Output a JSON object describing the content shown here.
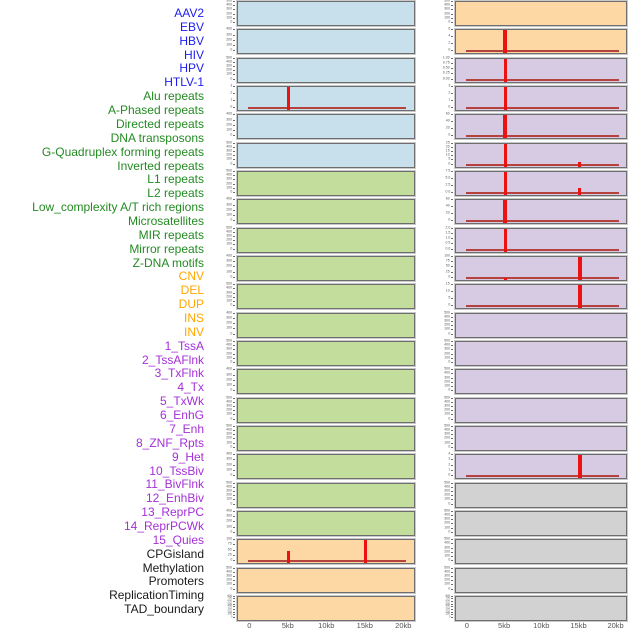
{
  "figure": {
    "title": "",
    "label_colors": {
      "virus": "#1c1cf0",
      "repeat": "#238b22",
      "sv": "#ffa600",
      "chromatin": "#a430d8",
      "other": "#1a1a1a"
    },
    "plot_bg_colors": {
      "virus": "#c8e0eb",
      "repeat": "#c3dd9d",
      "sv": "#fdd8a5",
      "chromatin": "#d6cbe3",
      "other": "#d2d2d2"
    },
    "signal_colors": {
      "spike": "#ec1212",
      "baseline": "#b5423c"
    }
  },
  "chart_data": {
    "type": "area",
    "x_unit": "kb",
    "x_range_kb": [
      0,
      20
    ],
    "x_ticks": [
      {
        "label": "0",
        "kb": 0
      },
      {
        "label": "5kb",
        "kb": 5
      },
      {
        "label": "10kb",
        "kb": 10
      },
      {
        "label": "15kb",
        "kb": 15
      },
      {
        "label": "20kb",
        "kb": 20
      }
    ],
    "layout_note": "44 tracks, column-major grid of 22 rows x 2 columns",
    "tracks": [
      {
        "name": "AAV2",
        "category": "virus",
        "column": "left",
        "yticks": [
          "0",
          "100",
          "200",
          "300",
          "400",
          "500"
        ],
        "ymax": 500,
        "peaks": [],
        "baseline": false,
        "dense": false
      },
      {
        "name": "EBV",
        "category": "virus",
        "column": "left",
        "yticks": [
          "0",
          "100",
          "200",
          "300",
          "400"
        ],
        "ymax": 400,
        "peaks": [],
        "baseline": false,
        "dense": false
      },
      {
        "name": "HBV",
        "category": "virus",
        "column": "left",
        "yticks": [
          "0",
          "100",
          "200",
          "300",
          "400",
          "500"
        ],
        "ymax": 500,
        "peaks": [],
        "baseline": false,
        "dense": false
      },
      {
        "name": "HIV",
        "category": "virus",
        "column": "left",
        "yticks": [
          "0",
          "1",
          "2",
          "3"
        ],
        "ymax": 3,
        "peaks": [
          {
            "x_kb": 5,
            "y": 3
          }
        ],
        "baseline": true,
        "dense": false
      },
      {
        "name": "HPV",
        "category": "virus",
        "column": "left",
        "yticks": [
          "0",
          "100",
          "200",
          "300",
          "400"
        ],
        "ymax": 400,
        "peaks": [],
        "baseline": false,
        "dense": false
      },
      {
        "name": "HTLV-1",
        "category": "virus",
        "column": "left",
        "yticks": [
          "0",
          "100",
          "200",
          "300",
          "400",
          "500"
        ],
        "ymax": 500,
        "peaks": [],
        "baseline": false,
        "dense": false
      },
      {
        "name": "Alu repeats",
        "category": "repeat",
        "column": "left",
        "yticks": [
          "0",
          "100",
          "200",
          "300",
          "400",
          "500"
        ],
        "ymax": 500,
        "peaks": [],
        "baseline": false,
        "dense": false
      },
      {
        "name": "A-Phased repeats",
        "category": "repeat",
        "column": "left",
        "yticks": [
          "0",
          "100",
          "200",
          "300",
          "400"
        ],
        "ymax": 400,
        "peaks": [],
        "baseline": false,
        "dense": false
      },
      {
        "name": "Directed repeats",
        "category": "repeat",
        "column": "left",
        "yticks": [
          "0",
          "100",
          "200",
          "300",
          "400",
          "500"
        ],
        "ymax": 500,
        "peaks": [],
        "baseline": false,
        "dense": false
      },
      {
        "name": "DNA transposons",
        "category": "repeat",
        "column": "left",
        "yticks": [
          "0",
          "100",
          "200",
          "300",
          "400"
        ],
        "ymax": 400,
        "peaks": [],
        "baseline": false,
        "dense": false
      },
      {
        "name": "G-Quadruplex forming repeats",
        "category": "repeat",
        "column": "left",
        "yticks": [
          "0",
          "100",
          "200",
          "300",
          "400",
          "500"
        ],
        "ymax": 500,
        "peaks": [],
        "baseline": false,
        "dense": false
      },
      {
        "name": "Inverted repeats",
        "category": "repeat",
        "column": "left",
        "yticks": [
          "0",
          "100",
          "200",
          "300",
          "400"
        ],
        "ymax": 400,
        "peaks": [],
        "baseline": false,
        "dense": false
      },
      {
        "name": "L1 repeats",
        "category": "repeat",
        "column": "left",
        "yticks": [
          "0",
          "100",
          "200",
          "300",
          "400",
          "500"
        ],
        "ymax": 500,
        "peaks": [],
        "baseline": false,
        "dense": false
      },
      {
        "name": "L2 repeats",
        "category": "repeat",
        "column": "left",
        "yticks": [
          "0",
          "100",
          "200",
          "300",
          "400"
        ],
        "ymax": 400,
        "peaks": [],
        "baseline": false,
        "dense": false
      },
      {
        "name": "Low_complexity A/T rich regions",
        "category": "repeat",
        "column": "left",
        "yticks": [
          "0",
          "100",
          "200",
          "300",
          "400",
          "500"
        ],
        "ymax": 500,
        "peaks": [],
        "baseline": false,
        "dense": false
      },
      {
        "name": "Microsatellites",
        "category": "repeat",
        "column": "left",
        "yticks": [
          "0",
          "100",
          "200",
          "300",
          "400",
          "500"
        ],
        "ymax": 500,
        "peaks": [],
        "baseline": false,
        "dense": false
      },
      {
        "name": "MIR repeats",
        "category": "repeat",
        "column": "left",
        "yticks": [
          "0",
          "100",
          "200",
          "300",
          "400"
        ],
        "ymax": 400,
        "peaks": [],
        "baseline": false,
        "dense": false
      },
      {
        "name": "Mirror repeats",
        "category": "repeat",
        "column": "left",
        "yticks": [
          "0",
          "100",
          "200",
          "300",
          "400",
          "500"
        ],
        "ymax": 500,
        "peaks": [],
        "baseline": false,
        "dense": false
      },
      {
        "name": "Z-DNA motifs",
        "category": "repeat",
        "column": "left",
        "yticks": [
          "0",
          "100",
          "200",
          "300",
          "400"
        ],
        "ymax": 400,
        "peaks": [],
        "baseline": false,
        "dense": false
      },
      {
        "name": "CNV",
        "category": "sv",
        "column": "left",
        "yticks": [
          "0",
          "25",
          "50",
          "75",
          "100"
        ],
        "ymax": 100,
        "peaks": [
          {
            "x_kb": 5,
            "y": 50
          },
          {
            "x_kb": 15,
            "y": 100
          }
        ],
        "baseline": true,
        "dense": false
      },
      {
        "name": "DEL",
        "category": "sv",
        "column": "left",
        "yticks": [
          "0",
          "100",
          "200",
          "300",
          "400",
          "500"
        ],
        "ymax": 500,
        "peaks": [],
        "baseline": false,
        "dense": false
      },
      {
        "name": "DUP",
        "category": "sv",
        "column": "left",
        "yticks": [
          "0",
          "100",
          "200",
          "300",
          "400",
          "500",
          "600",
          "700",
          "800"
        ],
        "ymax": 800,
        "peaks": [],
        "baseline": false,
        "dense": true
      },
      {
        "name": "INS",
        "category": "sv",
        "column": "right",
        "yticks": [
          "0",
          "100",
          "200",
          "300",
          "400",
          "500"
        ],
        "ymax": 500,
        "peaks": [],
        "baseline": false,
        "dense": false
      },
      {
        "name": "INV",
        "category": "sv",
        "column": "right",
        "yticks": [
          "0",
          "2",
          "4",
          "6"
        ],
        "ymax": 6,
        "peaks": [
          {
            "x_kb": 5,
            "y": 6,
            "w": 4
          }
        ],
        "baseline": true,
        "dense": false
      },
      {
        "name": "1_TssA",
        "category": "chromatin",
        "column": "right",
        "yticks": [
          "0.00",
          "0.25",
          "0.50",
          "0.75",
          "1.00"
        ],
        "ymax": 1,
        "peaks": [
          {
            "x_kb": 5,
            "y": 1
          }
        ],
        "baseline": true,
        "dense": false
      },
      {
        "name": "2_TssAFlnk",
        "category": "chromatin",
        "column": "right",
        "yticks": [
          "0",
          "1",
          "2",
          "3"
        ],
        "ymax": 3,
        "peaks": [
          {
            "x_kb": 5,
            "y": 3
          }
        ],
        "baseline": true,
        "dense": false
      },
      {
        "name": "3_TxFlnk",
        "category": "chromatin",
        "column": "right",
        "yticks": [
          "0",
          "20",
          "40",
          "60"
        ],
        "ymax": 60,
        "peaks": [
          {
            "x_kb": 5,
            "y": 60,
            "w": 4
          }
        ],
        "baseline": true,
        "dense": false
      },
      {
        "name": "4_Tx",
        "category": "chromatin",
        "column": "right",
        "yticks": [
          "0",
          "5",
          "10",
          "15",
          "20",
          "25"
        ],
        "ymax": 25,
        "peaks": [
          {
            "x_kb": 5,
            "y": 25
          },
          {
            "x_kb": 15,
            "y": 4
          }
        ],
        "baseline": true,
        "dense": false
      },
      {
        "name": "5_TxWk",
        "category": "chromatin",
        "column": "right",
        "yticks": [
          "0.0",
          "2.5",
          "5.0",
          "7.5"
        ],
        "ymax": 7.5,
        "peaks": [
          {
            "x_kb": 5,
            "y": 7.5
          },
          {
            "x_kb": 15,
            "y": 2
          }
        ],
        "baseline": true,
        "dense": false
      },
      {
        "name": "6_EnhG",
        "category": "chromatin",
        "column": "right",
        "yticks": [
          "0",
          "20",
          "40",
          "60"
        ],
        "ymax": 60,
        "peaks": [
          {
            "x_kb": 5,
            "y": 60,
            "w": 4
          }
        ],
        "baseline": true,
        "dense": false
      },
      {
        "name": "7_Enh",
        "category": "chromatin",
        "column": "right",
        "yticks": [
          "0.0",
          "0.5",
          "1.0",
          "1.5",
          "2.0"
        ],
        "ymax": 2,
        "peaks": [
          {
            "x_kb": 5,
            "y": 2
          }
        ],
        "baseline": true,
        "dense": false
      },
      {
        "name": "8_ZNF_Rpts",
        "category": "chromatin",
        "column": "right",
        "yticks": [
          "0",
          "25",
          "50",
          "75",
          "100"
        ],
        "ymax": 100,
        "peaks": [
          {
            "x_kb": 5,
            "y": 5
          },
          {
            "x_kb": 15,
            "y": 100,
            "w": 4
          }
        ],
        "baseline": true,
        "dense": false
      },
      {
        "name": "9_Het",
        "category": "chromatin",
        "column": "right",
        "yticks": [
          "0",
          "5",
          "10",
          "15"
        ],
        "ymax": 15,
        "peaks": [
          {
            "x_kb": 15,
            "y": 15,
            "w": 4
          }
        ],
        "baseline": true,
        "dense": false
      },
      {
        "name": "10_TssBiv",
        "category": "chromatin",
        "column": "right",
        "yticks": [
          "0",
          "100",
          "200",
          "300",
          "400",
          "500"
        ],
        "ymax": 500,
        "peaks": [],
        "baseline": false,
        "dense": false
      },
      {
        "name": "11_BivFlnk",
        "category": "chromatin",
        "column": "right",
        "yticks": [
          "0",
          "100",
          "200",
          "300",
          "400",
          "500"
        ],
        "ymax": 500,
        "peaks": [],
        "baseline": false,
        "dense": false
      },
      {
        "name": "12_EnhBiv",
        "category": "chromatin",
        "column": "right",
        "yticks": [
          "0",
          "100",
          "200",
          "300",
          "400",
          "500"
        ],
        "ymax": 500,
        "peaks": [],
        "baseline": false,
        "dense": false
      },
      {
        "name": "13_ReprPC",
        "category": "chromatin",
        "column": "right",
        "yticks": [
          "0",
          "100",
          "200",
          "300",
          "400",
          "500"
        ],
        "ymax": 500,
        "peaks": [],
        "baseline": false,
        "dense": false
      },
      {
        "name": "14_ReprPCWk",
        "category": "chromatin",
        "column": "right",
        "yticks": [
          "0",
          "100",
          "200",
          "300",
          "400",
          "500"
        ],
        "ymax": 500,
        "peaks": [],
        "baseline": false,
        "dense": false
      },
      {
        "name": "15_Quies",
        "category": "chromatin",
        "column": "right",
        "yticks": [
          "0",
          "1",
          "2",
          "3",
          "4"
        ],
        "ymax": 4,
        "peaks": [
          {
            "x_kb": 15,
            "y": 4,
            "w": 4
          }
        ],
        "baseline": true,
        "dense": false
      },
      {
        "name": "CPGisland",
        "category": "other",
        "column": "right",
        "yticks": [
          "0",
          "100",
          "200",
          "300",
          "400",
          "500"
        ],
        "ymax": 500,
        "peaks": [],
        "baseline": false,
        "dense": false
      },
      {
        "name": "Methylation",
        "category": "other",
        "column": "right",
        "yticks": [
          "0",
          "100",
          "200",
          "300",
          "400",
          "500"
        ],
        "ymax": 500,
        "peaks": [],
        "baseline": false,
        "dense": false
      },
      {
        "name": "Promoters",
        "category": "other",
        "column": "right",
        "yticks": [
          "0",
          "100",
          "200",
          "300",
          "400",
          "500"
        ],
        "ymax": 500,
        "peaks": [],
        "baseline": false,
        "dense": false
      },
      {
        "name": "ReplicationTiming",
        "category": "other",
        "column": "right",
        "yticks": [
          "0",
          "100",
          "200",
          "300",
          "400",
          "500"
        ],
        "ymax": 500,
        "peaks": [],
        "baseline": false,
        "dense": false
      },
      {
        "name": "TAD_boundary",
        "category": "other",
        "column": "right",
        "yticks": [
          "0",
          "100",
          "200",
          "300",
          "400",
          "500",
          "600",
          "700",
          "800"
        ],
        "ymax": 800,
        "peaks": [],
        "baseline": false,
        "dense": true
      }
    ]
  }
}
